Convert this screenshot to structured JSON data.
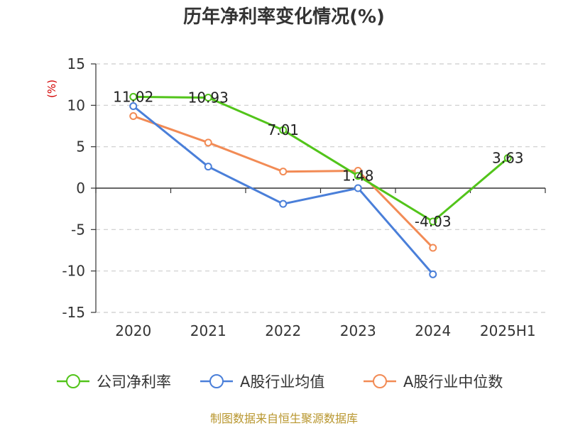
{
  "chart_data": {
    "type": "line",
    "title": "历年净利率变化情况(%)",
    "ylabel": "(%)",
    "xlabel": "",
    "categories": [
      "2020",
      "2021",
      "2022",
      "2023",
      "2024",
      "2025H1"
    ],
    "ylim": [
      -15,
      15
    ],
    "yticks": [
      15,
      10,
      5,
      0,
      -5,
      -10,
      -15
    ],
    "grid": true,
    "legend_position": "bottom",
    "series": [
      {
        "name": "公司净利率",
        "color": "#52c41a",
        "values": [
          11.02,
          10.93,
          7.01,
          1.48,
          -4.03,
          3.63
        ],
        "show_labels": true
      },
      {
        "name": "A股行业均值",
        "color": "#4a7fd9",
        "values": [
          9.9,
          2.6,
          -1.9,
          0.0,
          -10.4,
          null
        ],
        "show_labels": false
      },
      {
        "name": "A股行业中位数",
        "color": "#f28b55",
        "values": [
          8.7,
          5.5,
          2.0,
          2.1,
          -7.2,
          null
        ],
        "show_labels": false
      }
    ],
    "data_labels": [
      "11.02",
      "10.93",
      "7.01",
      "1.48",
      "-4.03",
      "3.63"
    ]
  },
  "footer": {
    "source": "制图数据来自恒生聚源数据库"
  }
}
